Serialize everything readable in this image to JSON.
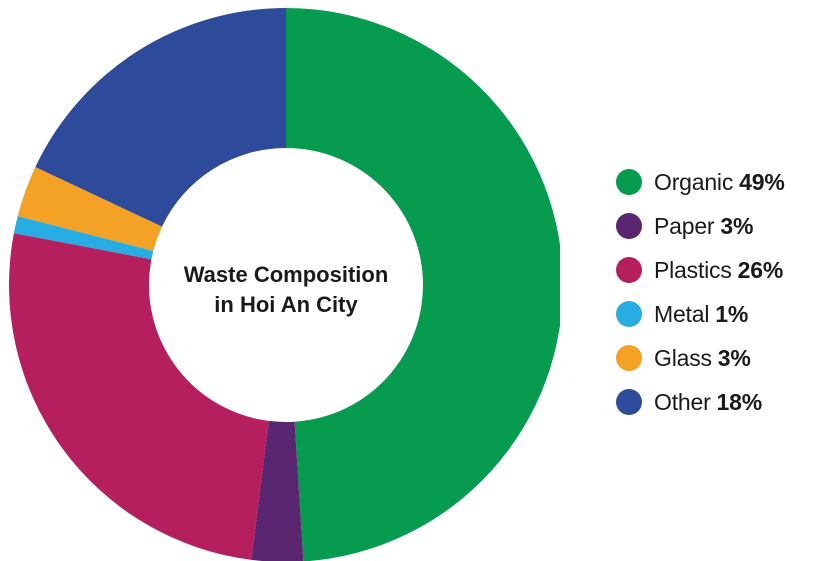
{
  "chart_data": {
    "type": "pie",
    "title_lines": [
      "Waste Composition",
      "in Hoi An City"
    ],
    "categories": [
      "Organic",
      "Paper",
      "Plastics",
      "Metal",
      "Glass",
      "Other"
    ],
    "values": [
      49,
      3,
      26,
      1,
      3,
      18
    ],
    "value_labels": [
      "49%",
      "3%",
      "26%",
      "1%",
      "3%",
      "18%"
    ],
    "colors": [
      "#069b4e",
      "#5b2670",
      "#b61f5e",
      "#27ade3",
      "#f4a225",
      "#2e4a9a"
    ],
    "legend_position": "right",
    "style": "donut"
  }
}
